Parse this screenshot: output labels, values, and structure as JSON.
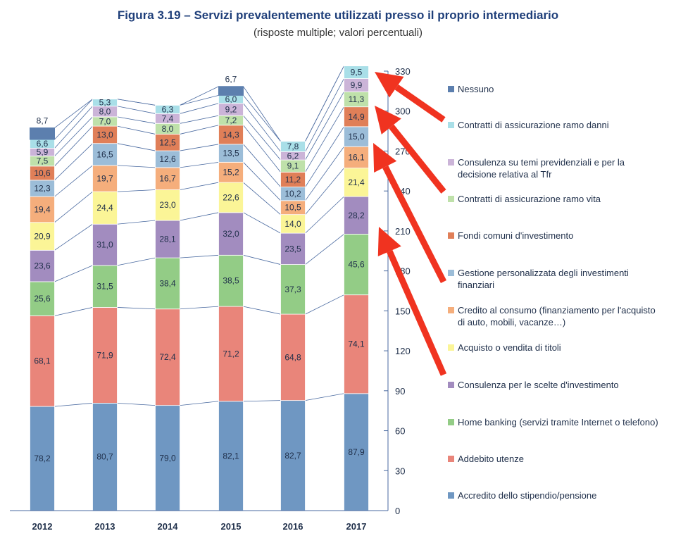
{
  "chart_data": {
    "type": "bar",
    "stacked": true,
    "title": "Figura 3.19 – Servizi prevalentemente utilizzati presso il proprio intermediario",
    "subtitle": "(risposte multiple; valori percentuali)",
    "categories": [
      "2012",
      "2013",
      "2014",
      "2015",
      "2016",
      "2017"
    ],
    "ylim": [
      0,
      330
    ],
    "yticks": [
      0,
      30,
      60,
      90,
      120,
      150,
      180,
      210,
      240,
      270,
      300,
      330
    ],
    "y_axis_side": "right",
    "series": [
      {
        "name": "Accredito dello stipendio/pensione",
        "color": "#6f97c2",
        "values": [
          78.2,
          80.7,
          79.0,
          82.1,
          82.7,
          87.9
        ],
        "labels": [
          "78,2",
          "80,7",
          "79,0",
          "82,1",
          "82,7",
          "87,9"
        ]
      },
      {
        "name": "Addebito utenze",
        "color": "#e9857a",
        "values": [
          68.1,
          71.9,
          72.4,
          71.2,
          64.8,
          74.1
        ],
        "labels": [
          "68,1",
          "71,9",
          "72,4",
          "71,2",
          "64,8",
          "74,1"
        ]
      },
      {
        "name": "Home banking (servizi tramite Internet o telefono)",
        "color": "#93cc86",
        "values": [
          25.6,
          31.5,
          38.4,
          38.5,
          37.3,
          45.6
        ],
        "labels": [
          "25,6",
          "31,5",
          "38,4",
          "38,5",
          "37,3",
          "45,6"
        ]
      },
      {
        "name": "Consulenza per le scelte d'investimento",
        "color": "#a28cbf",
        "values": [
          23.6,
          31.0,
          28.1,
          32.0,
          23.5,
          28.2
        ],
        "labels": [
          "23,6",
          "31,0",
          "28,1",
          "32,0",
          "23,5",
          "28,2"
        ]
      },
      {
        "name": "Acquisto o vendita di titoli",
        "color": "#fbf597",
        "values": [
          20.9,
          24.4,
          23.0,
          22.6,
          14.0,
          21.4
        ],
        "labels": [
          "20,9",
          "24,4",
          "23,0",
          "22,6",
          "14,0",
          "21,4"
        ]
      },
      {
        "name": "Credito al consumo (finanziamento per l'acquisto di auto, mobili, vacanze…)",
        "color": "#f5ae7c",
        "values": [
          19.4,
          19.7,
          16.7,
          15.2,
          10.5,
          16.1
        ],
        "labels": [
          "19,4",
          "19,7",
          "16,7",
          "15,2",
          "10,5",
          "16,1"
        ]
      },
      {
        "name": "Gestione personalizzata degli investimenti finanziari",
        "color": "#9cbdd8",
        "values": [
          12.3,
          16.5,
          12.6,
          13.5,
          10.2,
          15.0
        ],
        "labels": [
          "12,3",
          "16,5",
          "12,6",
          "13,5",
          "10,2",
          "15,0"
        ]
      },
      {
        "name": "Fondi comuni d'investimento",
        "color": "#e07f58",
        "values": [
          10.6,
          13.0,
          12.5,
          14.3,
          11.2,
          14.9
        ],
        "labels": [
          "10,6",
          "13,0",
          "12,5",
          "14,3",
          "11,2",
          "14,9"
        ]
      },
      {
        "name": "Contratti di assicurazione ramo vita",
        "color": "#bfe1aa",
        "values": [
          7.5,
          7.0,
          8.0,
          7.2,
          9.1,
          11.3
        ],
        "labels": [
          "7,5",
          "7,0",
          "8,0",
          "7,2",
          "9,1",
          "11,3"
        ]
      },
      {
        "name": "Consulenza su temi previdenziali e per la decisione relativa al Tfr",
        "color": "#cbb4d8",
        "values": [
          5.9,
          8.0,
          7.4,
          9.2,
          6.2,
          9.9
        ],
        "labels": [
          "5,9",
          "8,0",
          "7,4",
          "9,2",
          "6,2",
          "9,9"
        ]
      },
      {
        "name": "Contratti di assicurazione ramo danni",
        "color": "#a9dfe8",
        "values": [
          6.6,
          5.3,
          6.3,
          6.0,
          7.8,
          9.5
        ],
        "labels": [
          "6,6",
          "5,3",
          "6,3",
          "6,0",
          "7,8",
          "9,5"
        ]
      },
      {
        "name": "Nessuno",
        "color": "#5c7fae",
        "values": [
          8.7,
          0,
          0,
          6.7,
          0,
          0
        ],
        "labels": [
          "8,7",
          "",
          "",
          "6,7",
          "",
          ""
        ]
      }
    ],
    "legend_order": [
      "Nessuno",
      "Contratti di assicurazione ramo danni",
      "Consulenza su temi previdenziali e per la decisione relativa al Tfr",
      "Contratti di assicurazione ramo vita",
      "Fondi comuni d'investimento",
      "Gestione personalizzata degli investimenti finanziari",
      "Credito al consumo (finanziamento per l'acquisto di auto, mobili, vacanze…)",
      "Acquisto o vendita di titoli",
      "Consulenza per le scelte d'investimento",
      "Home banking (servizi tramite Internet o telefono)",
      "Addebito utenze",
      "Accredito dello stipendio/pensione"
    ],
    "legend_position": "right",
    "annotations": "red arrows pointing at the 2017 bar"
  }
}
